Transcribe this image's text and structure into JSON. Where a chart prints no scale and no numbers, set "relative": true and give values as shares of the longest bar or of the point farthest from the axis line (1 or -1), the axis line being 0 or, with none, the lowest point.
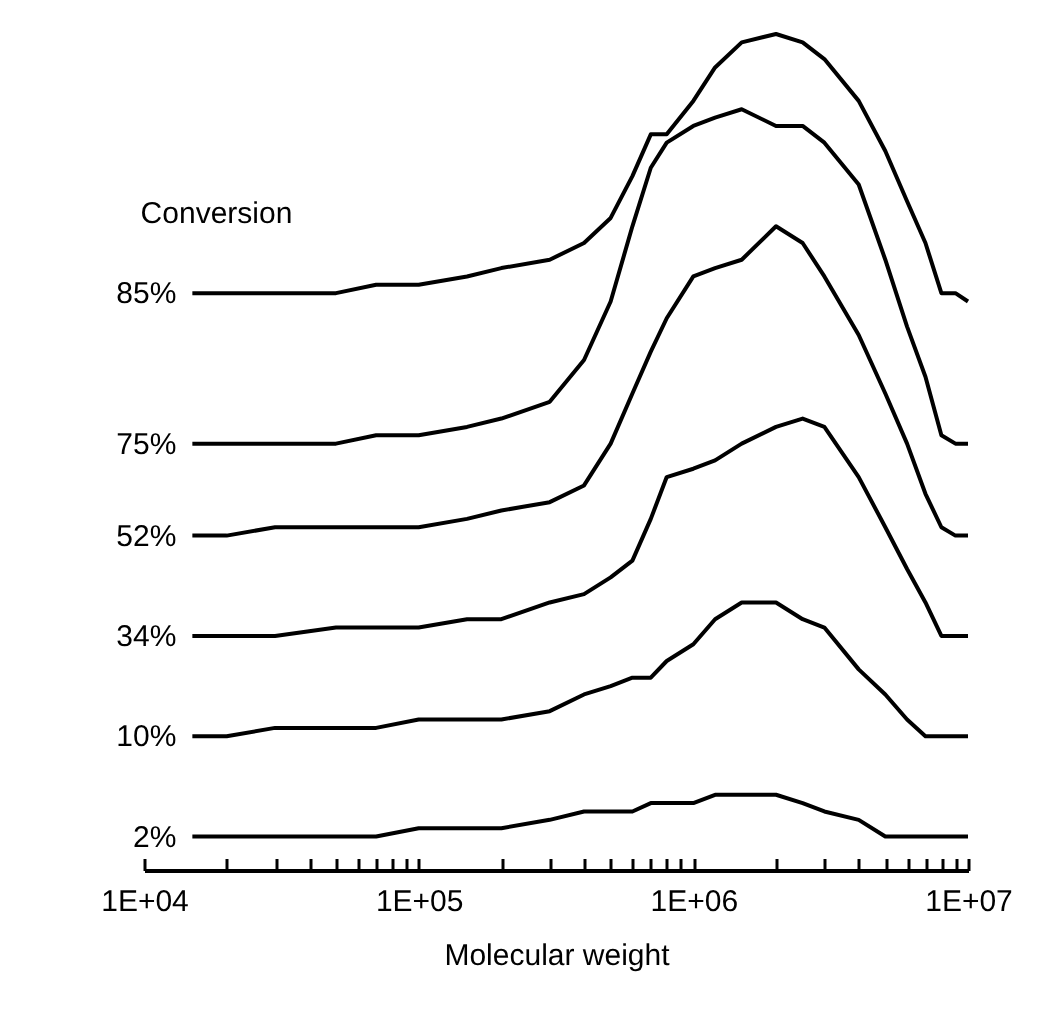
{
  "chart_data": {
    "type": "line",
    "relative": true,
    "xlabel": "Molecular weight",
    "legend_title": "Conversion",
    "log": "x",
    "xlim": [
      10000,
      10000000
    ],
    "xticks": [
      {
        "value": 10000,
        "label": "1E+04"
      },
      {
        "value": 20000,
        "label": null
      },
      {
        "value": 30000,
        "label": null
      },
      {
        "value": 40000,
        "label": null
      },
      {
        "value": 50000,
        "label": null
      },
      {
        "value": 60000,
        "label": null
      },
      {
        "value": 70000,
        "label": null
      },
      {
        "value": 80000,
        "label": null
      },
      {
        "value": 90000,
        "label": null
      },
      {
        "value": 100000,
        "label": "1E+05"
      },
      {
        "value": 200000,
        "label": null
      },
      {
        "value": 300000,
        "label": null
      },
      {
        "value": 400000,
        "label": null
      },
      {
        "value": 500000,
        "label": null
      },
      {
        "value": 600000,
        "label": null
      },
      {
        "value": 700000,
        "label": null
      },
      {
        "value": 800000,
        "label": null
      },
      {
        "value": 900000,
        "label": null
      },
      {
        "value": 1000000,
        "label": "1E+06"
      },
      {
        "value": 2000000,
        "label": null
      },
      {
        "value": 3000000,
        "label": null
      },
      {
        "value": 4000000,
        "label": null
      },
      {
        "value": 5000000,
        "label": null
      },
      {
        "value": 6000000,
        "label": null
      },
      {
        "value": 7000000,
        "label": null
      },
      {
        "value": 8000000,
        "label": null
      },
      {
        "value": 9000000,
        "label": null
      },
      {
        "value": 10000000,
        "label": "1E+07"
      }
    ],
    "x": [
      15000,
      20000,
      30000,
      50000,
      70000,
      100000,
      150000,
      200000,
      300000,
      400000,
      500000,
      600000,
      700000,
      800000,
      1000000,
      1200000,
      1500000,
      2000000,
      2500000,
      3000000,
      4000000,
      5000000,
      6000000,
      7000000,
      8000000,
      9000000,
      10000000
    ],
    "series": [
      {
        "name": "85%",
        "color": "#000000",
        "values": [
          0.69,
          0.69,
          0.69,
          0.69,
          0.7,
          0.7,
          0.71,
          0.72,
          0.73,
          0.75,
          0.78,
          0.83,
          0.88,
          0.88,
          0.92,
          0.96,
          0.99,
          1.0,
          0.99,
          0.97,
          0.92,
          0.86,
          0.8,
          0.75,
          0.69,
          0.69,
          0.68
        ]
      },
      {
        "name": "75%",
        "color": "#000000",
        "values": [
          0.51,
          0.51,
          0.51,
          0.51,
          0.52,
          0.52,
          0.53,
          0.54,
          0.56,
          0.61,
          0.68,
          0.77,
          0.84,
          0.87,
          0.89,
          0.9,
          0.91,
          0.89,
          0.89,
          0.87,
          0.82,
          0.73,
          0.65,
          0.59,
          0.52,
          0.51,
          0.51
        ]
      },
      {
        "name": "52%",
        "color": "#000000",
        "values": [
          0.4,
          0.4,
          0.41,
          0.41,
          0.41,
          0.41,
          0.42,
          0.43,
          0.44,
          0.46,
          0.51,
          0.57,
          0.62,
          0.66,
          0.71,
          0.72,
          0.73,
          0.77,
          0.75,
          0.71,
          0.64,
          0.57,
          0.51,
          0.45,
          0.41,
          0.4,
          0.4
        ]
      },
      {
        "name": "34%",
        "color": "#000000",
        "values": [
          0.28,
          0.28,
          0.28,
          0.29,
          0.29,
          0.29,
          0.3,
          0.3,
          0.32,
          0.33,
          0.35,
          0.37,
          0.42,
          0.47,
          0.48,
          0.49,
          0.51,
          0.53,
          0.54,
          0.53,
          0.47,
          0.41,
          0.36,
          0.32,
          0.28,
          0.28,
          0.28
        ]
      },
      {
        "name": "10%",
        "color": "#000000",
        "values": [
          0.16,
          0.16,
          0.17,
          0.17,
          0.17,
          0.18,
          0.18,
          0.18,
          0.19,
          0.21,
          0.22,
          0.23,
          0.23,
          0.25,
          0.27,
          0.3,
          0.32,
          0.32,
          0.3,
          0.29,
          0.24,
          0.21,
          0.18,
          0.16,
          0.16,
          0.16,
          0.16
        ]
      },
      {
        "name": "2%",
        "color": "#000000",
        "values": [
          0.04,
          0.04,
          0.04,
          0.04,
          0.04,
          0.05,
          0.05,
          0.05,
          0.06,
          0.07,
          0.07,
          0.07,
          0.08,
          0.08,
          0.08,
          0.09,
          0.09,
          0.09,
          0.08,
          0.07,
          0.06,
          0.04,
          0.04,
          0.04,
          0.04,
          0.04,
          0.04
        ]
      }
    ]
  }
}
